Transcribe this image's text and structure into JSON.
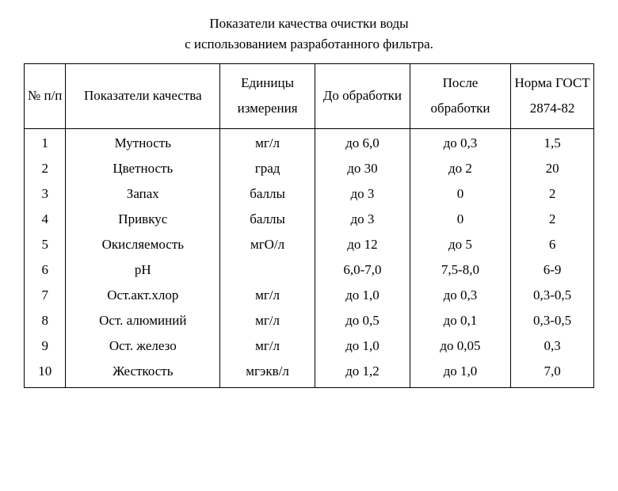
{
  "title": "Показатели качества очистки воды",
  "subtitle": "с использованием разработанного фильтра.",
  "headers": {
    "num": "№ п/п",
    "indicator": "Показатели качества",
    "unit": "Единицы измерения",
    "before": "До обработки",
    "after": "После обработки",
    "norm": "Норма ГОСТ 2874-82"
  },
  "rows": [
    {
      "num": "1",
      "indicator": "Мутность",
      "unit": "мг/л",
      "before": "до 6,0",
      "after": "до 0,3",
      "norm": "1,5"
    },
    {
      "num": "2",
      "indicator": "Цветность",
      "unit": "град",
      "before": "до 30",
      "after": "до 2",
      "norm": "20"
    },
    {
      "num": "3",
      "indicator": "Запах",
      "unit": "баллы",
      "before": "до 3",
      "after": "0",
      "norm": "2"
    },
    {
      "num": "4",
      "indicator": "Привкус",
      "unit": "баллы",
      "before": "до 3",
      "after": "0",
      "norm": "2"
    },
    {
      "num": "5",
      "indicator": "Окисляемость",
      "unit": "мгО/л",
      "before": "до 12",
      "after": "до 5",
      "norm": "6"
    },
    {
      "num": "6",
      "indicator": "pH",
      "unit": "",
      "before": "6,0-7,0",
      "after": "7,5-8,0",
      "norm": "6-9"
    },
    {
      "num": "7",
      "indicator": "Ост.акт.хлор",
      "unit": "мг/л",
      "before": "до 1,0",
      "after": "до 0,3",
      "norm": "0,3-0,5"
    },
    {
      "num": "8",
      "indicator": "Ост. алюминий",
      "unit": "мг/л",
      "before": "до 0,5",
      "after": "до 0,1",
      "norm": "0,3-0,5"
    },
    {
      "num": "9",
      "indicator": "Ост. железо",
      "unit": "мг/л",
      "before": "до 1,0",
      "after": "до 0,05",
      "norm": "0,3"
    },
    {
      "num": "10",
      "indicator": "Жесткость",
      "unit": "мгэкв/л",
      "before": "до 1,2",
      "after": "до 1,0",
      "norm": "7,0"
    }
  ]
}
